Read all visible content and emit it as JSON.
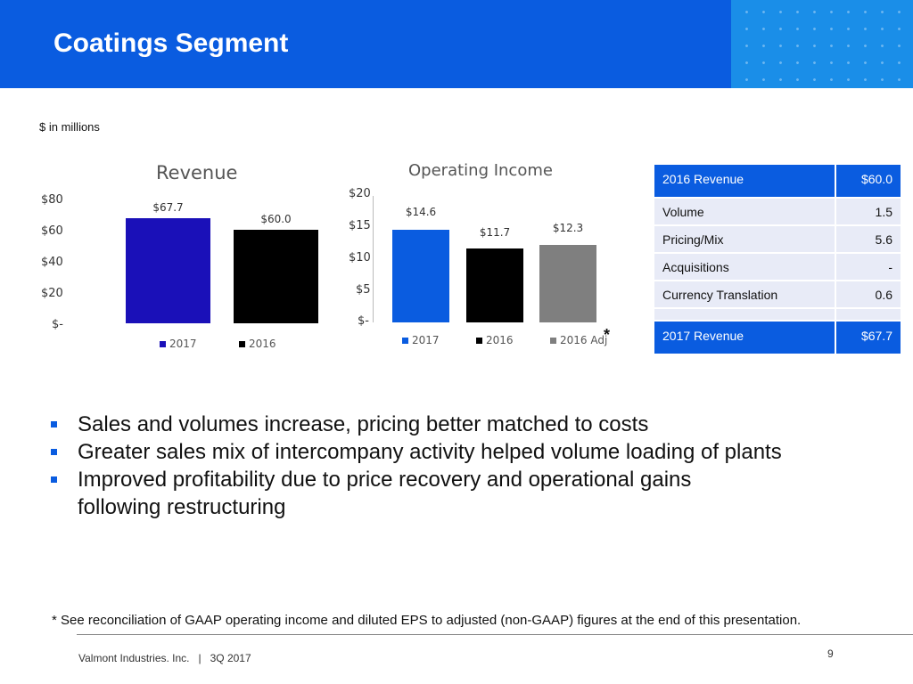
{
  "slide": {
    "title": "Coatings Segment",
    "units_note": "$ in millions",
    "footnote": "* See reconciliation of GAAP operating income and diluted EPS to adjusted (non-GAAP) figures at the end of this presentation.",
    "company": "Valmont Industries. Inc.   |   3Q 2017",
    "page_number": "9",
    "header_color": "#0a5ce0"
  },
  "chart_data": [
    {
      "type": "bar",
      "title": "Revenue",
      "categories": [
        "2017",
        "2016"
      ],
      "values": [
        67.7,
        60.0
      ],
      "data_labels": [
        "$67.7",
        "$60.0"
      ],
      "colors": [
        "#1a10b8",
        "#000000"
      ],
      "ylim": [
        0,
        80
      ],
      "y_ticks": [
        "$80",
        "$60",
        "$40",
        "$20",
        "$-"
      ],
      "legend": [
        "2017",
        "2016"
      ],
      "legend_position": "bottom"
    },
    {
      "type": "bar",
      "title": "Operating Income",
      "categories": [
        "2017",
        "2016",
        "2016 Adj"
      ],
      "values": [
        14.6,
        11.7,
        12.3
      ],
      "data_labels": [
        "$14.6",
        "$11.7",
        "$12.3"
      ],
      "colors": [
        "#0a5ce0",
        "#000000",
        "#7f7f7f"
      ],
      "ylim": [
        0,
        20
      ],
      "y_ticks": [
        "$20",
        "$15",
        "$10",
        "$5",
        "$-"
      ],
      "legend": [
        "2017",
        "2016",
        "2016 Adj"
      ],
      "legend_position": "bottom",
      "annotation": "*"
    }
  ],
  "bridge_table": {
    "start": {
      "label": "2016 Revenue",
      "value": "$60.0"
    },
    "rows": [
      {
        "label": "Volume",
        "value": "1.5"
      },
      {
        "label": "Pricing/Mix",
        "value": "5.6"
      },
      {
        "label": "Acquisitions",
        "value": "-"
      },
      {
        "label": "Currency Translation",
        "value": "0.6"
      }
    ],
    "end": {
      "label": "2017 Revenue",
      "value": "$67.7"
    }
  },
  "bullets": [
    "Sales and volumes increase, pricing better matched to costs",
    "Greater sales mix of intercompany activity helped volume loading of plants",
    "Improved profitability due to price recovery and operational gains following restructuring"
  ]
}
